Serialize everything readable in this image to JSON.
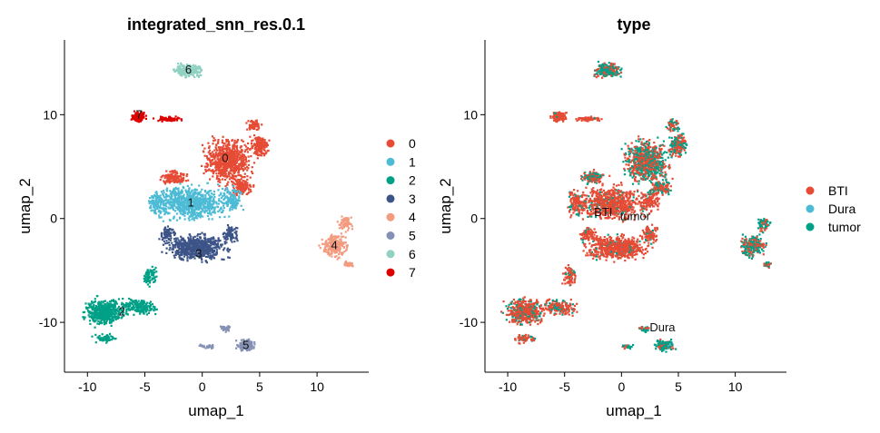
{
  "chart_data": [
    {
      "type": "scatter",
      "title": "integrated_snn_res.0.1",
      "xlabel": "umap_1",
      "ylabel": "umap_2",
      "xlim": [
        -12,
        14.5
      ],
      "ylim": [
        -14.8,
        17.2
      ],
      "xticks": [
        -10,
        -5,
        0,
        5,
        10
      ],
      "yticks": [
        -10,
        0,
        10
      ],
      "legend_position": "right",
      "legend": [
        {
          "label": "0",
          "color": "#E64B35"
        },
        {
          "label": "1",
          "color": "#4DBBD5"
        },
        {
          "label": "2",
          "color": "#00A087"
        },
        {
          "label": "3",
          "color": "#3C5488"
        },
        {
          "label": "4",
          "color": "#F39B7F"
        },
        {
          "label": "5",
          "color": "#8491B4"
        },
        {
          "label": "6",
          "color": "#91D1C2"
        },
        {
          "label": "7",
          "color": "#DC0000"
        }
      ],
      "cluster_labels": [
        {
          "text": "0",
          "x": 2,
          "y": 5.8
        },
        {
          "text": "1",
          "x": -1,
          "y": 1.5
        },
        {
          "text": "2",
          "x": -7,
          "y": -9
        },
        {
          "text": "3",
          "x": -0.3,
          "y": -3.4
        },
        {
          "text": "4",
          "x": 11.5,
          "y": -2.6
        },
        {
          "text": "5",
          "x": 3.8,
          "y": -12.2
        },
        {
          "text": "6",
          "x": -1.2,
          "y": 14.3
        },
        {
          "text": "7",
          "x": -5.5,
          "y": 10
        }
      ]
    },
    {
      "type": "scatter",
      "title": "type",
      "xlabel": "umap_1",
      "ylabel": "umap_2",
      "xlim": [
        -12,
        14.5
      ],
      "ylim": [
        -14.8,
        17.2
      ],
      "xticks": [
        -10,
        -5,
        0,
        5,
        10
      ],
      "yticks": [
        -10,
        0,
        10
      ],
      "legend_position": "right",
      "legend": [
        {
          "label": "BTI",
          "color": "#E64B35"
        },
        {
          "label": "Dura",
          "color": "#4DBBD5"
        },
        {
          "label": "tumor",
          "color": "#00A087"
        }
      ],
      "cluster_labels": [
        {
          "text": "BTI",
          "x": -1.6,
          "y": 0.6
        },
        {
          "text": "tumor",
          "x": 1.2,
          "y": 0.2
        },
        {
          "text": "Dura",
          "x": 3.6,
          "y": -10.5
        }
      ]
    }
  ]
}
